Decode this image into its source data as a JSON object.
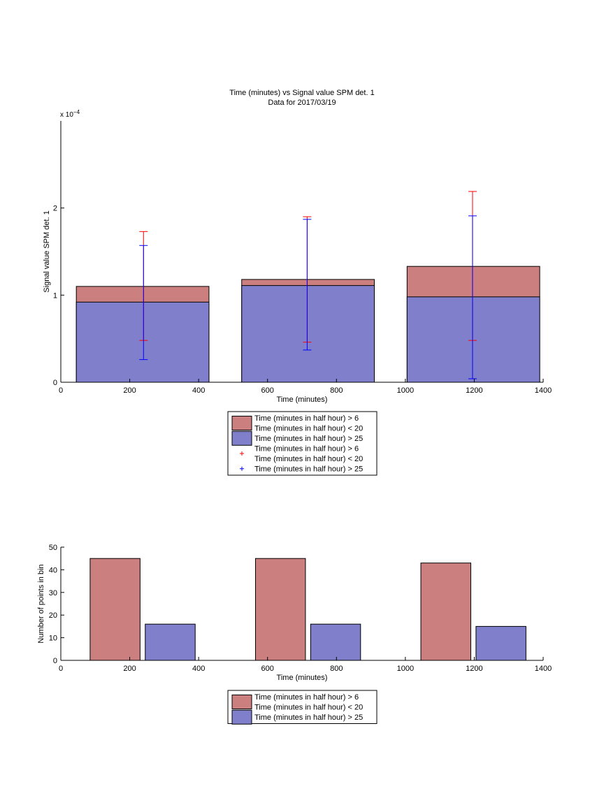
{
  "chart_data": [
    {
      "type": "bar",
      "title": "Time (minutes) vs Signal value SPM det. 1",
      "subtitle": "Data for 2017/03/19",
      "xlabel": "Time (minutes)",
      "ylabel": "Signal value SPM det. 1",
      "y_exponent_label": "x 10",
      "y_exponent": "−4",
      "xlim": [
        0,
        1400
      ],
      "ylim": [
        0,
        3
      ],
      "x_ticks": [
        0,
        200,
        400,
        600,
        800,
        1000,
        1200,
        1400
      ],
      "y_ticks": [
        0,
        1,
        2
      ],
      "grid": false,
      "legend_position": "below",
      "bars": [
        {
          "x_start": 45,
          "x_end": 430,
          "values": [
            1.1,
            0.92
          ]
        },
        {
          "x_start": 525,
          "x_end": 910,
          "values": [
            1.18,
            1.11
          ]
        },
        {
          "x_start": 1005,
          "x_end": 1390,
          "values": [
            1.33,
            0.98
          ]
        }
      ],
      "series": [
        {
          "name": "Time (minutes in half hour) > 6\nTime (minutes in half hour) < 20",
          "color": "#cb7f7f",
          "error_bars": [
            {
              "x": 240,
              "low": 0.48,
              "high": 1.73
            },
            {
              "x": 715,
              "low": 0.46,
              "high": 1.9
            },
            {
              "x": 1195,
              "low": 0.48,
              "high": 2.19
            }
          ]
        },
        {
          "name": "Time (minutes in half hour) > 25",
          "color": "#7f7fcb",
          "error_bars": [
            {
              "x": 240,
              "low": 0.26,
              "high": 1.57
            },
            {
              "x": 715,
              "low": 0.37,
              "high": 1.87
            },
            {
              "x": 1195,
              "low": 0.04,
              "high": 1.91
            }
          ]
        }
      ],
      "legend": [
        {
          "kind": "patch",
          "color": "#cb7f7f",
          "lines": [
            "Time (minutes in half hour) > 6",
            "Time (minutes in half hour) < 20"
          ]
        },
        {
          "kind": "patch",
          "color": "#7f7fcb",
          "lines": [
            "Time (minutes in half hour) > 25"
          ]
        },
        {
          "kind": "marker",
          "color": "#ff0000",
          "lines": [
            "Time (minutes in half hour) > 6",
            "Time (minutes in half hour) < 20"
          ]
        },
        {
          "kind": "marker",
          "color": "#0000ff",
          "lines": [
            "Time (minutes in half hour) > 25"
          ]
        }
      ]
    },
    {
      "type": "bar",
      "xlabel": "Time (minutes)",
      "ylabel": "Number of points in bin",
      "xlim": [
        0,
        1400
      ],
      "ylim": [
        0,
        50
      ],
      "x_ticks": [
        0,
        200,
        400,
        600,
        800,
        1000,
        1200,
        1400
      ],
      "y_ticks": [
        0,
        10,
        20,
        30,
        40,
        50
      ],
      "grid": false,
      "legend_position": "below",
      "series": [
        {
          "name": "Time (minutes in half hour) > 6\nTime (minutes in half hour) < 20",
          "color": "#cb7f7f",
          "bars": [
            {
              "x_start": 85,
              "x_end": 230,
              "value": 45
            },
            {
              "x_start": 565,
              "x_end": 710,
              "value": 45
            },
            {
              "x_start": 1045,
              "x_end": 1190,
              "value": 43
            }
          ]
        },
        {
          "name": "Time (minutes in half hour) > 25",
          "color": "#7f7fcb",
          "bars": [
            {
              "x_start": 245,
              "x_end": 390,
              "value": 16
            },
            {
              "x_start": 725,
              "x_end": 870,
              "value": 16
            },
            {
              "x_start": 1205,
              "x_end": 1350,
              "value": 15
            }
          ]
        }
      ],
      "legend": [
        {
          "kind": "patch",
          "color": "#cb7f7f",
          "lines": [
            "Time (minutes in half hour) > 6",
            "Time (minutes in half hour) < 20"
          ]
        },
        {
          "kind": "patch",
          "color": "#7f7fcb",
          "lines": [
            "Time (minutes in half hour) > 25"
          ]
        }
      ]
    }
  ]
}
